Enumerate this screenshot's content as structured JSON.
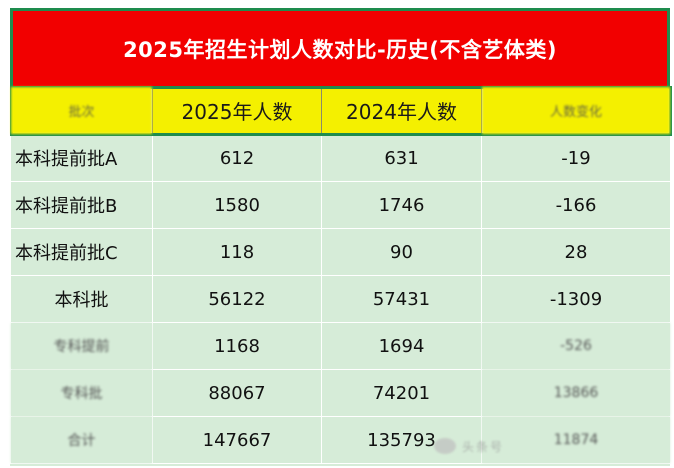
{
  "title": "2025年招生计划人数对比-历史(不含艺体类)",
  "header": {
    "col1": "批次",
    "col2": "2025年人数",
    "col3": "2024年人数",
    "col4": "人数变化"
  },
  "rows": [
    {
      "batch": "本科提前批A",
      "y2025": "612",
      "y2024": "631",
      "diff": "-19"
    },
    {
      "batch": "本科提前批B",
      "y2025": "1580",
      "y2024": "1746",
      "diff": "-166"
    },
    {
      "batch": "本科提前批C",
      "y2025": "118",
      "y2024": "90",
      "diff": "28"
    },
    {
      "batch": "本科批",
      "y2025": "56122",
      "y2024": "57431",
      "diff": "-1309"
    },
    {
      "batch": "专科提前",
      "y2025": "1168",
      "y2024": "1694",
      "diff": "-526"
    },
    {
      "batch": "专科批",
      "y2025": "88067",
      "y2024": "74201",
      "diff": "13866"
    },
    {
      "batch": "合计",
      "y2025": "147667",
      "y2024": "135793",
      "diff": "11874"
    }
  ],
  "watermark": "头条号"
}
